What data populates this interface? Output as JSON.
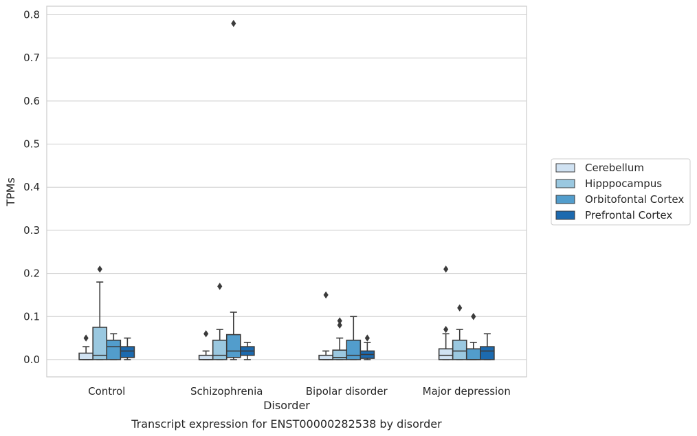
{
  "chart_data": {
    "type": "box",
    "ylabel": "TPMs",
    "xlabel": "Disorder",
    "caption": "Transcript expression for ENST00000282538 by disorder",
    "ylim": [
      -0.04,
      0.82
    ],
    "yticks": [
      "0.0",
      "0.1",
      "0.2",
      "0.3",
      "0.4",
      "0.5",
      "0.6",
      "0.7",
      "0.8"
    ],
    "ytick_values": [
      0,
      0.1,
      0.2,
      0.3,
      0.4,
      0.5,
      0.6,
      0.7,
      0.8
    ],
    "grid": true,
    "legend_position": "right",
    "categories": [
      "Control",
      "Schizophrenia",
      "Bipolar disorder",
      "Major depression"
    ],
    "series": [
      {
        "name": "Cerebellum",
        "color": "#d0e2f2",
        "boxes": [
          {
            "q1": 0.0,
            "median": 0.0,
            "q3": 0.015,
            "whisker_low": 0.0,
            "whisker_high": 0.03,
            "outliers": [
              0.05
            ]
          },
          {
            "q1": 0.0,
            "median": 0.0,
            "q3": 0.01,
            "whisker_low": 0.0,
            "whisker_high": 0.02,
            "outliers": [
              0.06
            ]
          },
          {
            "q1": 0.0,
            "median": 0.0,
            "q3": 0.01,
            "whisker_low": 0.0,
            "whisker_high": 0.02,
            "outliers": [
              0.15
            ]
          },
          {
            "q1": 0.0,
            "median": 0.01,
            "q3": 0.025,
            "whisker_low": 0.0,
            "whisker_high": 0.06,
            "outliers": [
              0.07,
              0.21
            ]
          }
        ]
      },
      {
        "name": "Hipppocampus",
        "color": "#9ac8e0",
        "boxes": [
          {
            "q1": 0.0,
            "median": 0.01,
            "q3": 0.075,
            "whisker_low": 0.0,
            "whisker_high": 0.18,
            "outliers": [
              0.21
            ]
          },
          {
            "q1": 0.0,
            "median": 0.01,
            "q3": 0.045,
            "whisker_low": 0.0,
            "whisker_high": 0.07,
            "outliers": [
              0.17
            ]
          },
          {
            "q1": 0.0,
            "median": 0.005,
            "q3": 0.022,
            "whisker_low": 0.0,
            "whisker_high": 0.05,
            "outliers": [
              0.08,
              0.09
            ]
          },
          {
            "q1": 0.0,
            "median": 0.02,
            "q3": 0.045,
            "whisker_low": 0.0,
            "whisker_high": 0.07,
            "outliers": [
              0.12
            ]
          }
        ]
      },
      {
        "name": "Orbitofontal Cortex",
        "color": "#529dcc",
        "boxes": [
          {
            "q1": 0.0,
            "median": 0.03,
            "q3": 0.045,
            "whisker_low": 0.0,
            "whisker_high": 0.06,
            "outliers": []
          },
          {
            "q1": 0.005,
            "median": 0.02,
            "q3": 0.058,
            "whisker_low": 0.0,
            "whisker_high": 0.11,
            "outliers": [
              0.78
            ]
          },
          {
            "q1": 0.0,
            "median": 0.01,
            "q3": 0.045,
            "whisker_low": 0.0,
            "whisker_high": 0.1,
            "outliers": []
          },
          {
            "q1": 0.0,
            "median": 0.0,
            "q3": 0.025,
            "whisker_low": 0.0,
            "whisker_high": 0.04,
            "outliers": [
              0.1
            ]
          }
        ]
      },
      {
        "name": "Prefrontal Cortex",
        "color": "#1c6aaf",
        "boxes": [
          {
            "q1": 0.005,
            "median": 0.02,
            "q3": 0.03,
            "whisker_low": 0.0,
            "whisker_high": 0.05,
            "outliers": []
          },
          {
            "q1": 0.01,
            "median": 0.02,
            "q3": 0.03,
            "whisker_low": 0.0,
            "whisker_high": 0.04,
            "outliers": []
          },
          {
            "q1": 0.003,
            "median": 0.012,
            "q3": 0.02,
            "whisker_low": 0.0,
            "whisker_high": 0.04,
            "outliers": [
              0.05
            ]
          },
          {
            "q1": 0.0,
            "median": 0.02,
            "q3": 0.03,
            "whisker_low": 0.0,
            "whisker_high": 0.06,
            "outliers": []
          }
        ]
      }
    ]
  }
}
